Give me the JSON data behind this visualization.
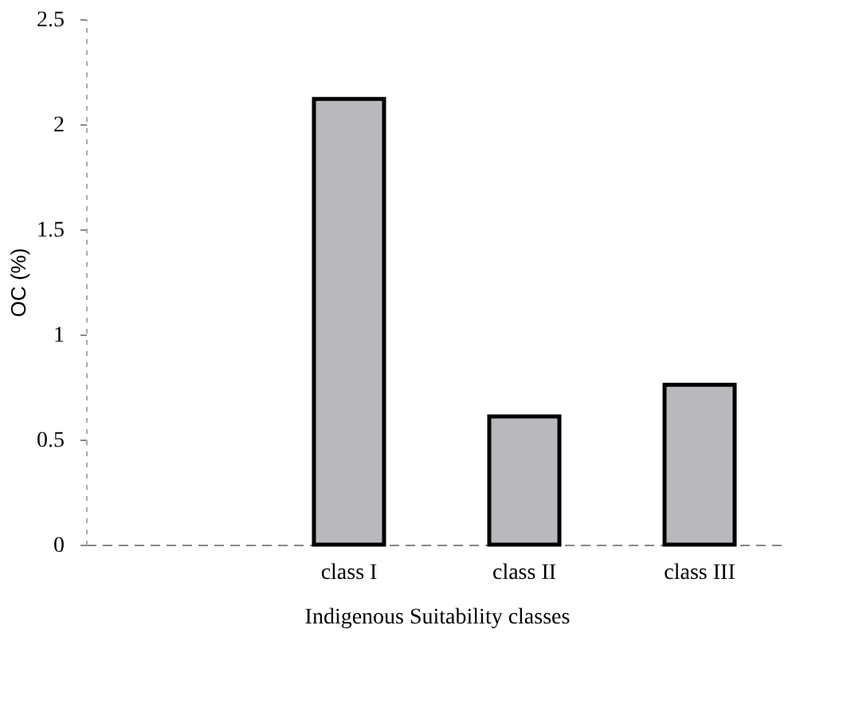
{
  "chart_data": {
    "type": "bar",
    "xlabel": "Indigenous Suitability classes",
    "ylabel": "OC (%)",
    "categories": [
      null,
      "class I",
      "class II",
      "class III"
    ],
    "values": [
      null,
      2.12,
      0.61,
      0.76
    ],
    "color": "#b9b9bd",
    "ylim": [
      0,
      2.5
    ],
    "yticks": [
      0,
      0.5,
      1,
      1.5,
      2,
      2.5
    ],
    "grid": false
  }
}
